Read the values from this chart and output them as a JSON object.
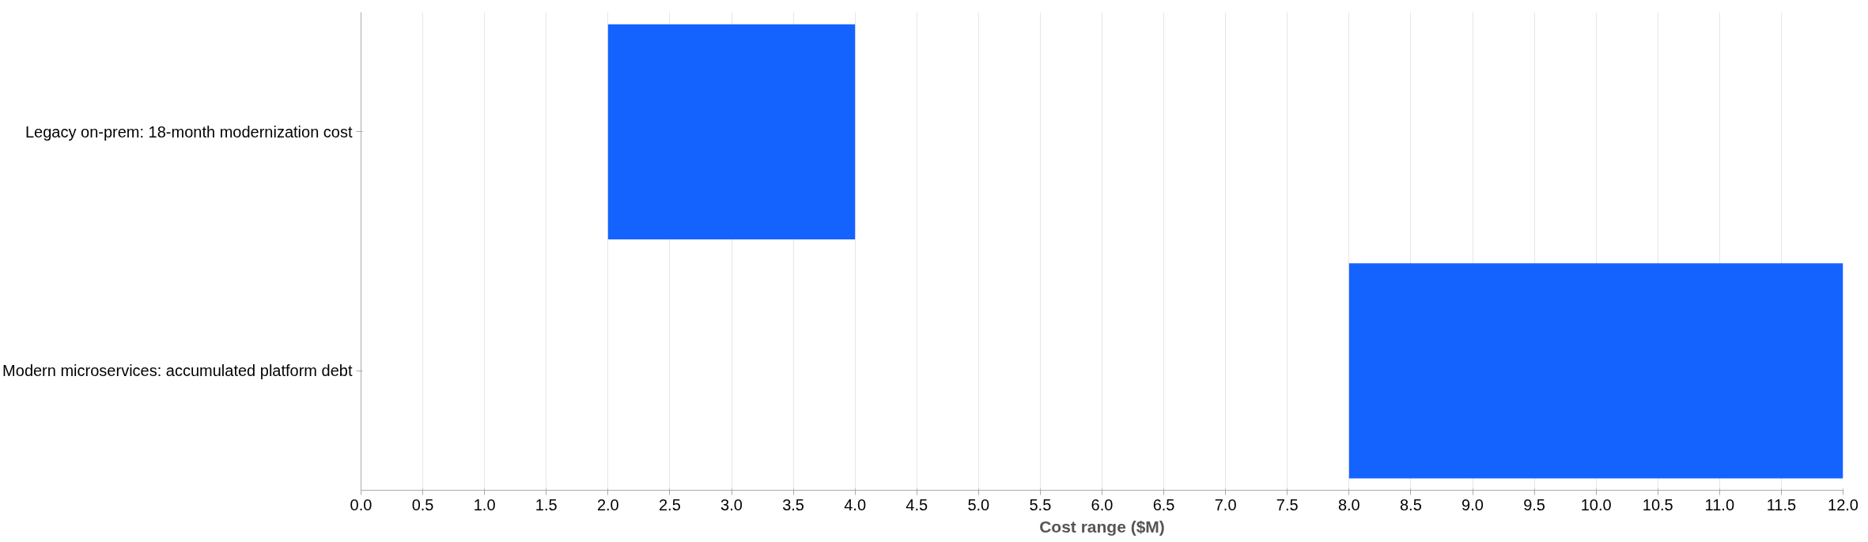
{
  "chart_data": {
    "type": "bar",
    "orientation": "horizontal",
    "xlabel": "Cost range ($M)",
    "categories": [
      "Legacy on-prem: 18-month modernization cost",
      "Modern microservices: accumulated platform debt"
    ],
    "base": [
      2,
      8
    ],
    "values": [
      2,
      4
    ],
    "color": "#1463ff",
    "xlim": [
      0,
      12
    ],
    "xticks": [
      {
        "value": 0,
        "label": "0.0"
      },
      0.5,
      {
        "value": 1,
        "label": "1.0"
      },
      1.5,
      {
        "value": 2,
        "label": "2.0"
      },
      2.5,
      {
        "value": 3,
        "label": "3.0"
      },
      3.5,
      {
        "value": 4,
        "label": "4.0"
      },
      4.5,
      {
        "value": 5,
        "label": "5.0"
      },
      5.5,
      {
        "value": 6,
        "label": "6.0"
      },
      6.5,
      {
        "value": 7,
        "label": "7.0"
      },
      7.5,
      {
        "value": 8,
        "label": "8.0"
      },
      8.5,
      {
        "value": 9,
        "label": "9.0"
      },
      9.5,
      {
        "value": 10,
        "label": "10.0"
      },
      10.5,
      {
        "value": 11,
        "label": "11.0"
      },
      11.5,
      {
        "value": 12,
        "label": "12.0"
      }
    ],
    "grid": "x"
  }
}
